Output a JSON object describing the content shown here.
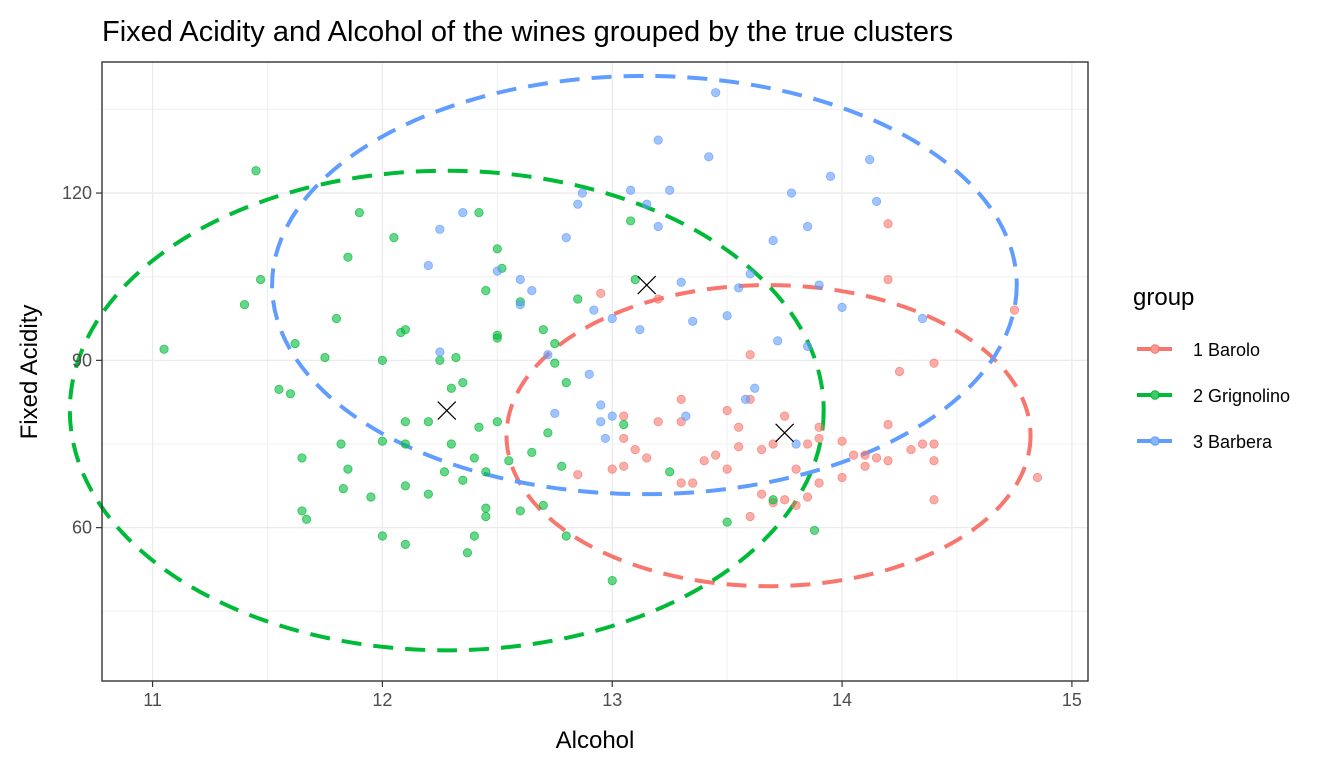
{
  "chart_data": {
    "type": "scatter",
    "title": "Fixed Acidity and Alcohol of the wines grouped by the true clusters",
    "xlabel": "Alcohol",
    "ylabel": "Fixed Acidity",
    "xlim": [
      10.78,
      15.07
    ],
    "ylim": [
      32.5,
      143.5
    ],
    "x_ticks": [
      11,
      12,
      13,
      14,
      15
    ],
    "y_ticks": [
      60,
      90,
      120
    ],
    "x_tick_labels": [
      "11",
      "12",
      "13",
      "14",
      "15"
    ],
    "y_tick_labels": [
      "60",
      "90",
      "120"
    ],
    "grid": true,
    "legend": {
      "title": "group",
      "placement": "right",
      "entries": [
        "1 Barolo",
        "2 Grignolino",
        "3 Barbera"
      ]
    },
    "colors": {
      "1 Barolo": "#F8766D",
      "2 Grignolino": "#00BA38",
      "3 Barbera": "#619CFF"
    },
    "centroids": [
      {
        "name": "1 Barolo",
        "x": 13.75,
        "y": 77
      },
      {
        "name": "2 Grignolino",
        "x": 12.28,
        "y": 81
      },
      {
        "name": "3 Barbera",
        "x": 13.15,
        "y": 103.5
      }
    ],
    "series": [
      {
        "name": "1 Barolo",
        "points": [
          [
            13.0,
            70.5
          ],
          [
            13.05,
            71
          ],
          [
            13.05,
            80
          ],
          [
            13.05,
            76
          ],
          [
            13.1,
            74
          ],
          [
            13.2,
            79
          ],
          [
            13.3,
            83
          ],
          [
            13.3,
            79
          ],
          [
            13.35,
            68
          ],
          [
            13.4,
            72
          ],
          [
            13.5,
            70.5
          ],
          [
            13.5,
            81
          ],
          [
            13.55,
            78
          ],
          [
            13.6,
            62
          ],
          [
            13.65,
            74
          ],
          [
            13.75,
            80
          ],
          [
            13.8,
            70.5
          ],
          [
            13.8,
            64
          ],
          [
            13.85,
            65.5
          ],
          [
            13.9,
            78
          ],
          [
            13.9,
            76
          ],
          [
            14.0,
            69
          ],
          [
            14.05,
            73
          ],
          [
            14.1,
            71
          ],
          [
            14.15,
            72.5
          ],
          [
            14.2,
            78.5
          ],
          [
            14.2,
            72
          ],
          [
            14.3,
            74
          ],
          [
            14.35,
            75
          ],
          [
            14.4,
            75
          ],
          [
            14.4,
            72
          ],
          [
            14.4,
            65
          ],
          [
            14.2,
            104.5
          ],
          [
            14.2,
            114.5
          ],
          [
            14.4,
            89.5
          ],
          [
            14.75,
            99
          ],
          [
            14.85,
            69
          ],
          [
            12.85,
            69.5
          ],
          [
            12.95,
            102
          ],
          [
            13.2,
            101
          ],
          [
            13.6,
            91
          ],
          [
            13.75,
            65
          ],
          [
            13.9,
            68
          ],
          [
            13.3,
            68
          ],
          [
            14.0,
            75.5
          ],
          [
            13.55,
            74.5
          ],
          [
            13.7,
            64.5
          ],
          [
            14.25,
            88
          ],
          [
            13.15,
            72.5
          ],
          [
            13.45,
            73
          ],
          [
            13.85,
            75
          ],
          [
            14.1,
            73
          ],
          [
            13.7,
            75
          ],
          [
            13.65,
            66
          ],
          [
            13.6,
            83
          ]
        ]
      },
      {
        "name": "2 Grignolino",
        "points": [
          [
            11.05,
            92
          ],
          [
            11.4,
            100
          ],
          [
            11.45,
            124
          ],
          [
            11.47,
            104.5
          ],
          [
            11.55,
            84.8
          ],
          [
            11.6,
            84
          ],
          [
            11.62,
            93
          ],
          [
            11.65,
            72.5
          ],
          [
            11.65,
            63
          ],
          [
            11.67,
            61.5
          ],
          [
            11.75,
            90.5
          ],
          [
            11.8,
            97.5
          ],
          [
            11.82,
            75
          ],
          [
            11.83,
            67
          ],
          [
            11.85,
            70.5
          ],
          [
            11.85,
            108.5
          ],
          [
            11.9,
            116.5
          ],
          [
            11.95,
            65.5
          ],
          [
            12.0,
            90
          ],
          [
            12.0,
            75.5
          ],
          [
            12.0,
            58.5
          ],
          [
            12.05,
            112
          ],
          [
            12.08,
            95
          ],
          [
            12.1,
            95.5
          ],
          [
            12.1,
            79
          ],
          [
            12.1,
            75
          ],
          [
            12.1,
            67.5
          ],
          [
            12.1,
            57
          ],
          [
            12.2,
            66
          ],
          [
            12.2,
            79
          ],
          [
            12.25,
            90
          ],
          [
            12.27,
            70
          ],
          [
            12.3,
            85
          ],
          [
            12.3,
            75
          ],
          [
            12.32,
            90.5
          ],
          [
            12.35,
            86
          ],
          [
            12.35,
            68.5
          ],
          [
            12.37,
            55.5
          ],
          [
            12.4,
            72.5
          ],
          [
            12.4,
            58.5
          ],
          [
            12.42,
            78
          ],
          [
            12.45,
            70
          ],
          [
            12.45,
            63.5
          ],
          [
            12.45,
            62
          ],
          [
            12.45,
            102.5
          ],
          [
            12.5,
            94.5
          ],
          [
            12.5,
            94
          ],
          [
            12.5,
            79
          ],
          [
            12.5,
            110
          ],
          [
            12.52,
            106.5
          ],
          [
            12.55,
            72
          ],
          [
            12.6,
            100.5
          ],
          [
            12.6,
            63
          ],
          [
            12.65,
            73.5
          ],
          [
            12.7,
            64
          ],
          [
            12.7,
            95.5
          ],
          [
            12.72,
            77
          ],
          [
            12.75,
            93
          ],
          [
            12.75,
            89.5
          ],
          [
            12.78,
            71
          ],
          [
            12.8,
            58.5
          ],
          [
            12.8,
            86
          ],
          [
            12.85,
            101
          ],
          [
            13.0,
            50.5
          ],
          [
            13.05,
            78.5
          ],
          [
            13.08,
            115
          ],
          [
            13.1,
            104.5
          ],
          [
            13.25,
            70
          ],
          [
            13.5,
            61
          ],
          [
            13.7,
            65
          ],
          [
            13.88,
            59.5
          ],
          [
            12.42,
            116.5
          ]
        ]
      },
      {
        "name": "3 Barbera",
        "points": [
          [
            12.2,
            107
          ],
          [
            12.25,
            113.5
          ],
          [
            12.25,
            91.5
          ],
          [
            12.35,
            116.5
          ],
          [
            12.5,
            106
          ],
          [
            12.6,
            104.5
          ],
          [
            12.6,
            100
          ],
          [
            12.65,
            102.5
          ],
          [
            12.75,
            80.5
          ],
          [
            12.72,
            91
          ],
          [
            12.8,
            112
          ],
          [
            12.85,
            118
          ],
          [
            12.87,
            120
          ],
          [
            12.9,
            87.5
          ],
          [
            12.92,
            99
          ],
          [
            12.95,
            82
          ],
          [
            12.95,
            79
          ],
          [
            12.97,
            76
          ],
          [
            13.0,
            80
          ],
          [
            13.0,
            97.5
          ],
          [
            13.08,
            120.5
          ],
          [
            13.12,
            95.5
          ],
          [
            13.15,
            118
          ],
          [
            13.2,
            129.5
          ],
          [
            13.2,
            114
          ],
          [
            13.25,
            120.5
          ],
          [
            13.3,
            104
          ],
          [
            13.35,
            97
          ],
          [
            13.42,
            126.5
          ],
          [
            13.45,
            138
          ],
          [
            13.5,
            98
          ],
          [
            13.55,
            103
          ],
          [
            13.6,
            105.5
          ],
          [
            13.62,
            85
          ],
          [
            13.7,
            111.5
          ],
          [
            13.72,
            93.5
          ],
          [
            13.78,
            120
          ],
          [
            13.85,
            114
          ],
          [
            13.85,
            92.5
          ],
          [
            13.9,
            103.5
          ],
          [
            13.95,
            123
          ],
          [
            14.0,
            99.5
          ],
          [
            14.12,
            126
          ],
          [
            14.15,
            118.5
          ],
          [
            14.35,
            97.5
          ],
          [
            13.32,
            80
          ],
          [
            13.58,
            83
          ],
          [
            13.8,
            75
          ]
        ]
      }
    ],
    "ellipses": [
      {
        "name": "1 Barolo",
        "cx": 13.68,
        "cy": 76.5,
        "rx": 1.14,
        "ry": 27.0,
        "rotation_deg": 0
      },
      {
        "name": "2 Grignolino",
        "cx": 12.28,
        "cy": 81.0,
        "rx": 1.64,
        "ry": 43.0,
        "rotation_deg": 0
      },
      {
        "name": "3 Barbera",
        "cx": 13.14,
        "cy": 103.5,
        "rx": 1.62,
        "ry": 37.5,
        "rotation_deg": 0
      }
    ]
  }
}
